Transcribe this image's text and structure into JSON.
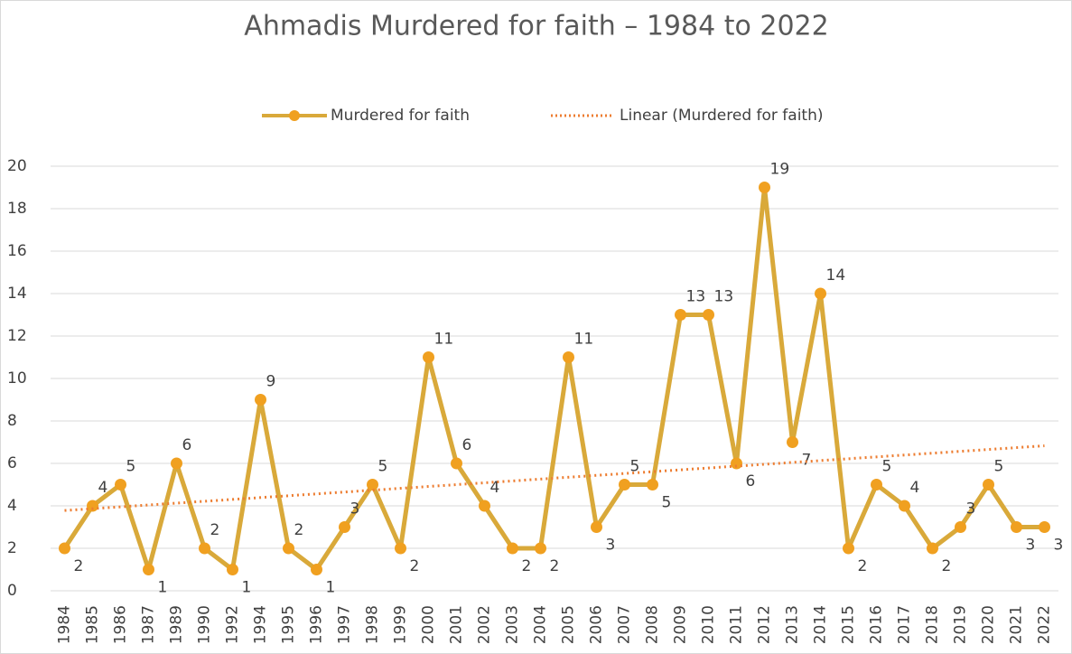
{
  "chart_data": {
    "type": "line",
    "title": "Ahmadis Murdered for faith – 1984 to 2022",
    "categories": [
      "1984",
      "1985",
      "1986",
      "1987",
      "1989",
      "1990",
      "1992",
      "1994",
      "1995",
      "1996",
      "1997",
      "1998",
      "1999",
      "2000",
      "2001",
      "2002",
      "2003",
      "2004",
      "2005",
      "2006",
      "2007",
      "2008",
      "2009",
      "2010",
      "2011",
      "2012",
      "2013",
      "2014",
      "2015",
      "2016",
      "2017",
      "2018",
      "2019",
      "2020",
      "2021",
      "2022"
    ],
    "series": [
      {
        "name": "Murdered for faith",
        "color": "#d9a93a",
        "marker_color": "#f0a020",
        "values": [
          2,
          4,
          5,
          1,
          6,
          2,
          1,
          9,
          2,
          1,
          3,
          5,
          2,
          11,
          6,
          4,
          2,
          2,
          11,
          3,
          5,
          5,
          13,
          13,
          6,
          19,
          7,
          14,
          2,
          5,
          4,
          2,
          3,
          5,
          3,
          3
        ]
      }
    ],
    "trendline": {
      "name": "Linear (Murdered for faith)",
      "color": "#ed7d31",
      "values": [
        3.78,
        6.83
      ]
    },
    "ylim": [
      0,
      20
    ],
    "yticks": [
      0,
      2,
      4,
      6,
      8,
      10,
      12,
      14,
      16,
      18,
      20
    ],
    "grid": true,
    "legend": "top"
  }
}
